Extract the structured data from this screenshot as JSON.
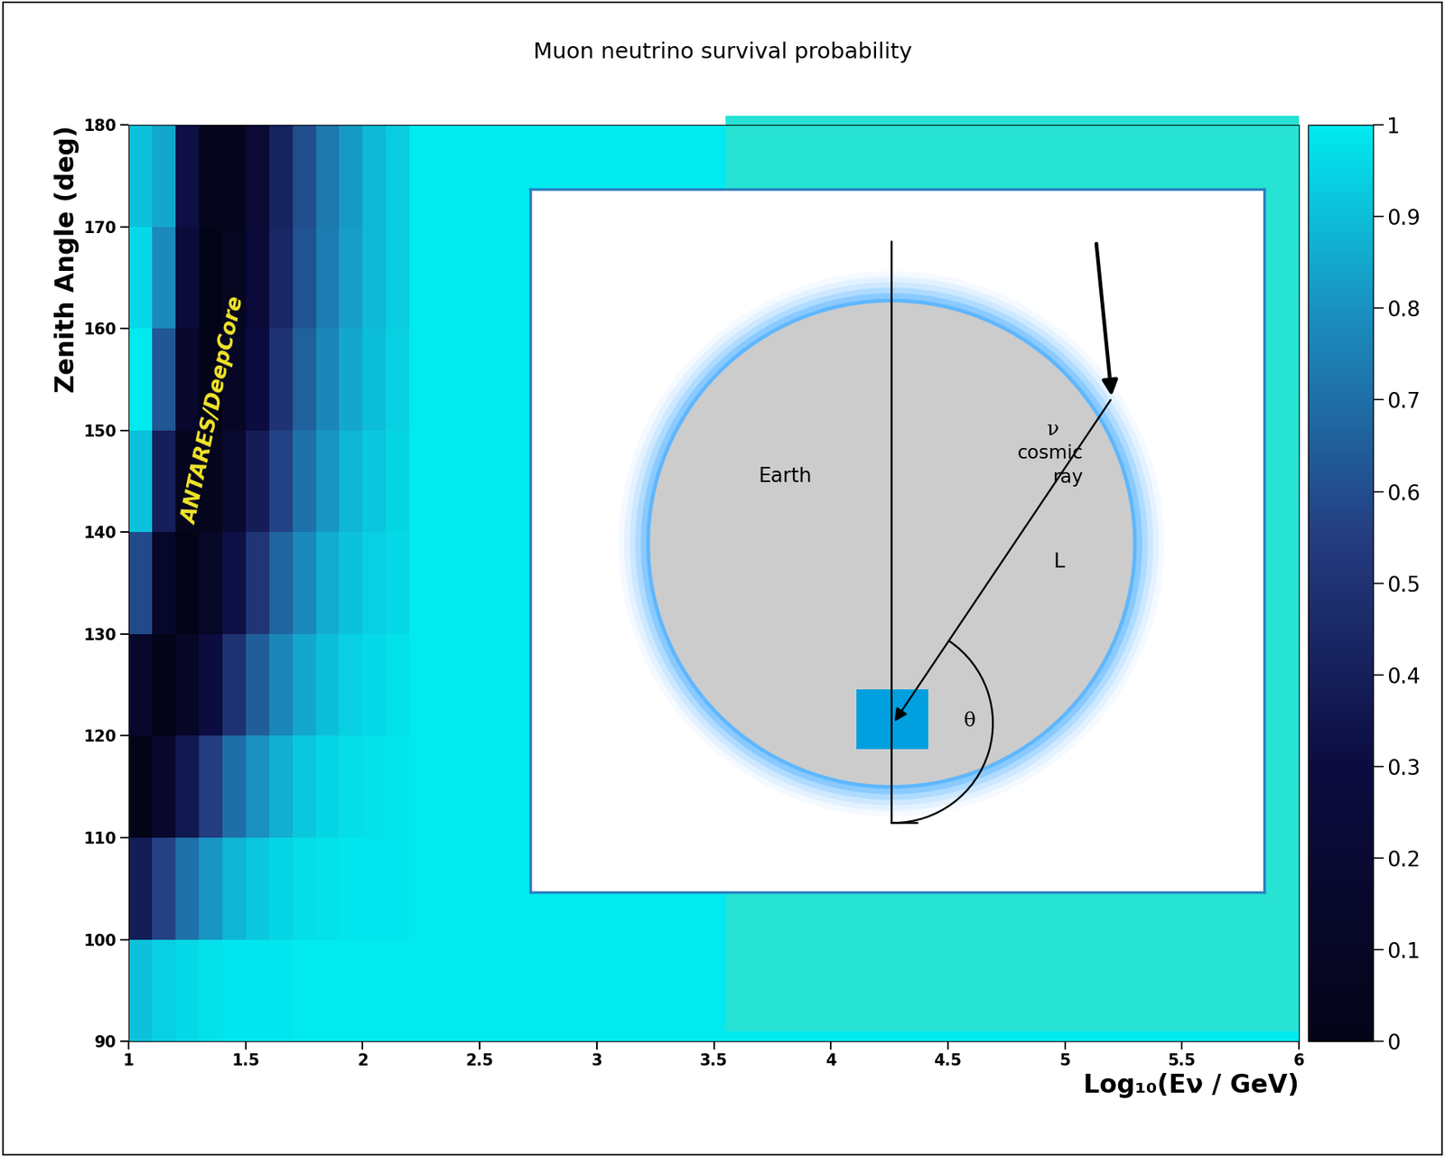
{
  "chart_data": {
    "type": "heatmap",
    "title": "Muon neutrino survival probability",
    "x_label": "Log₁₀(Eν / GeV)",
    "y_label": "Zenith Angle (deg)",
    "xlim": [
      1,
      6
    ],
    "xticks": [
      1,
      1.5,
      2,
      2.5,
      3,
      3.5,
      4,
      4.5,
      5,
      5.5,
      6
    ],
    "ylim": [
      90,
      180
    ],
    "yticks": [
      90,
      100,
      110,
      120,
      130,
      140,
      150,
      160,
      170,
      180
    ],
    "x_edges": [
      1.0,
      1.1,
      1.2,
      1.3,
      1.4,
      1.5,
      1.6,
      1.7,
      1.8,
      1.9,
      2.0,
      2.1,
      2.2,
      6.0
    ],
    "y_edges": [
      90,
      100,
      110,
      120,
      130,
      140,
      150,
      160,
      170,
      180
    ],
    "cells": [
      [
        0.91,
        0.94,
        0.96,
        0.98,
        0.99,
        0.99,
        0.99,
        1.0,
        1.0,
        1.0,
        1.0,
        1.0,
        1.0
      ],
      [
        0.39,
        0.57,
        0.71,
        0.81,
        0.88,
        0.92,
        0.95,
        0.97,
        0.98,
        0.99,
        0.99,
        0.99,
        1.0
      ],
      [
        0.01,
        0.16,
        0.36,
        0.55,
        0.7,
        0.8,
        0.87,
        0.92,
        0.95,
        0.97,
        0.98,
        0.99,
        1.0
      ],
      [
        0.16,
        0.0,
        0.1,
        0.3,
        0.49,
        0.65,
        0.77,
        0.85,
        0.9,
        0.94,
        0.96,
        0.98,
        1.0
      ],
      [
        0.59,
        0.13,
        0.0,
        0.11,
        0.32,
        0.51,
        0.67,
        0.78,
        0.86,
        0.91,
        0.94,
        0.96,
        1.0
      ],
      [
        0.91,
        0.4,
        0.05,
        0.02,
        0.18,
        0.39,
        0.57,
        0.71,
        0.81,
        0.88,
        0.92,
        0.95,
        1.0
      ],
      [
        1.0,
        0.63,
        0.16,
        0.0,
        0.1,
        0.3,
        0.5,
        0.66,
        0.77,
        0.85,
        0.9,
        0.94,
        1.0
      ],
      [
        0.96,
        0.78,
        0.26,
        0.01,
        0.06,
        0.24,
        0.44,
        0.62,
        0.74,
        0.83,
        0.89,
        0.93,
        1.0
      ],
      [
        0.91,
        0.85,
        0.32,
        0.02,
        0.04,
        0.21,
        0.42,
        0.6,
        0.73,
        0.82,
        0.89,
        0.93,
        1.0
      ]
    ],
    "colorbar": {
      "range": [
        0,
        1
      ],
      "ticks": [
        0,
        0.1,
        0.2,
        0.3,
        0.4,
        0.5,
        0.6,
        0.7,
        0.8,
        0.9,
        1
      ]
    },
    "annotations": [
      "ANTARES/DeepCore"
    ],
    "inset_texts": {
      "earth": "Earth",
      "cosmic_ray": "cosmic\nray",
      "neutrino": "ν",
      "path": "L",
      "angle": "θ"
    }
  }
}
